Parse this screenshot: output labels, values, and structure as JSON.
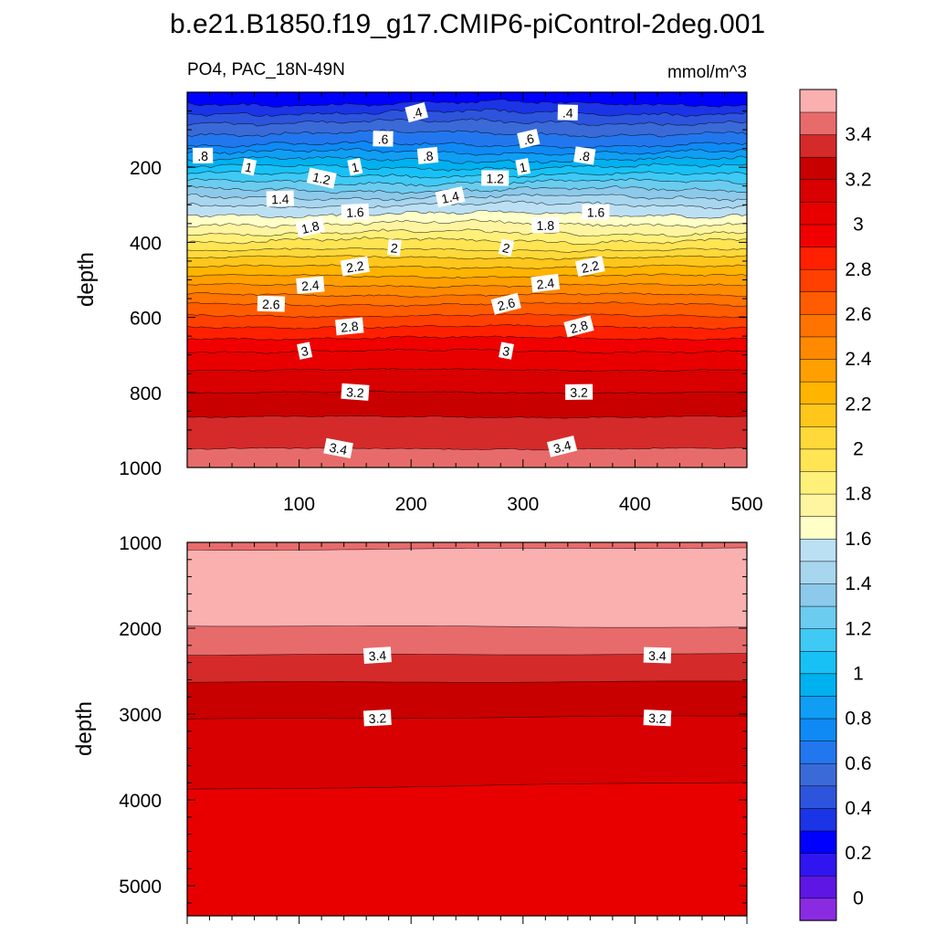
{
  "title": "b.e21.B1850.f19_g17.CMIP6-piControl-2deg.001",
  "chart_data": {
    "type": "contour",
    "variable": "PO4, PAC_18N-49N",
    "units": "mmol/m^3",
    "ylabel": "depth",
    "upper_panel": {
      "xlim": [
        0,
        500
      ],
      "ylim": [
        1000,
        0
      ],
      "x_ticks": [
        100,
        200,
        300,
        400,
        500
      ],
      "y_ticks": [
        200,
        400,
        600,
        800,
        1000
      ],
      "contour_depth_levels": [
        {
          "v": 0.3,
          "d": 30
        },
        {
          "v": 0.4,
          "d": 55
        },
        {
          "v": 0.5,
          "d": 80
        },
        {
          "v": 0.6,
          "d": 110
        },
        {
          "v": 0.7,
          "d": 140
        },
        {
          "v": 0.8,
          "d": 160
        },
        {
          "v": 0.9,
          "d": 180
        },
        {
          "v": 1.0,
          "d": 200
        },
        {
          "v": 1.1,
          "d": 220
        },
        {
          "v": 1.2,
          "d": 240
        },
        {
          "v": 1.3,
          "d": 260
        },
        {
          "v": 1.4,
          "d": 280
        },
        {
          "v": 1.5,
          "d": 300
        },
        {
          "v": 1.6,
          "d": 325
        },
        {
          "v": 1.7,
          "d": 350
        },
        {
          "v": 1.8,
          "d": 375
        },
        {
          "v": 1.9,
          "d": 395
        },
        {
          "v": 2.0,
          "d": 420
        },
        {
          "v": 2.1,
          "d": 440
        },
        {
          "v": 2.2,
          "d": 465
        },
        {
          "v": 2.3,
          "d": 490
        },
        {
          "v": 2.4,
          "d": 515
        },
        {
          "v": 2.5,
          "d": 540
        },
        {
          "v": 2.6,
          "d": 565
        },
        {
          "v": 2.7,
          "d": 595
        },
        {
          "v": 2.8,
          "d": 625
        },
        {
          "v": 2.9,
          "d": 655
        },
        {
          "v": 3.0,
          "d": 690
        },
        {
          "v": 3.1,
          "d": 740
        },
        {
          "v": 3.2,
          "d": 800
        },
        {
          "v": 3.3,
          "d": 865
        },
        {
          "v": 3.4,
          "d": 950
        }
      ],
      "contour_labels": [
        {
          "text": ".4",
          "x": 205,
          "d": 55
        },
        {
          "text": ".4",
          "x": 340,
          "d": 55
        },
        {
          "text": ".6",
          "x": 175,
          "d": 125
        },
        {
          "text": ".6",
          "x": 305,
          "d": 125
        },
        {
          "text": ".8",
          "x": 14,
          "d": 170
        },
        {
          "text": ".8",
          "x": 215,
          "d": 170
        },
        {
          "text": ".8",
          "x": 355,
          "d": 170
        },
        {
          "text": "1",
          "x": 55,
          "d": 200
        },
        {
          "text": "1",
          "x": 150,
          "d": 200
        },
        {
          "text": "1",
          "x": 300,
          "d": 200
        },
        {
          "text": "1.2",
          "x": 120,
          "d": 230
        },
        {
          "text": "1.2",
          "x": 275,
          "d": 230
        },
        {
          "text": "1.4",
          "x": 83,
          "d": 285
        },
        {
          "text": "1.4",
          "x": 235,
          "d": 280
        },
        {
          "text": "1.6",
          "x": 150,
          "d": 320
        },
        {
          "text": "1.6",
          "x": 365,
          "d": 320
        },
        {
          "text": "1.8",
          "x": 110,
          "d": 360
        },
        {
          "text": "1.8",
          "x": 320,
          "d": 355
        },
        {
          "text": "2",
          "x": 185,
          "d": 415
        },
        {
          "text": "2",
          "x": 285,
          "d": 415
        },
        {
          "text": "2.2",
          "x": 150,
          "d": 465
        },
        {
          "text": "2.2",
          "x": 360,
          "d": 465
        },
        {
          "text": "2.4",
          "x": 110,
          "d": 515
        },
        {
          "text": "2.4",
          "x": 320,
          "d": 510
        },
        {
          "text": "2.6",
          "x": 75,
          "d": 565
        },
        {
          "text": "2.6",
          "x": 285,
          "d": 565
        },
        {
          "text": "2.8",
          "x": 145,
          "d": 625
        },
        {
          "text": "2.8",
          "x": 350,
          "d": 625
        },
        {
          "text": "3",
          "x": 105,
          "d": 690
        },
        {
          "text": "3",
          "x": 285,
          "d": 690
        },
        {
          "text": "3.2",
          "x": 150,
          "d": 800
        },
        {
          "text": "3.2",
          "x": 350,
          "d": 800
        },
        {
          "text": "3.4",
          "x": 135,
          "d": 950
        },
        {
          "text": "3.4",
          "x": 335,
          "d": 945
        }
      ]
    },
    "lower_panel": {
      "xlim": [
        0,
        500
      ],
      "ylim": [
        5350,
        1000
      ],
      "y_ticks": [
        1000,
        2000,
        3000,
        4000,
        5000
      ],
      "boundaries": [
        {
          "v": 3.5,
          "d_left": 1090,
          "d_right": 1060
        },
        {
          "v": 3.5,
          "d_left": 1970,
          "d_right": 1990
        },
        {
          "v": 3.4,
          "d_left": 2310,
          "d_right": 2300
        },
        {
          "v": 3.3,
          "d_left": 2630,
          "d_right": 2620
        },
        {
          "v": 3.2,
          "d_left": 3060,
          "d_right": 3020
        },
        {
          "v": 3.1,
          "d_left": 3880,
          "d_right": 3790
        }
      ],
      "contour_labels": [
        {
          "text": "3.4",
          "x": 170,
          "d": 2320
        },
        {
          "text": "3.4",
          "x": 420,
          "d": 2320
        },
        {
          "text": "3.2",
          "x": 170,
          "d": 3050
        },
        {
          "text": "3.2",
          "x": 420,
          "d": 3050
        }
      ]
    },
    "colorbar": {
      "labels": [
        "0",
        "0.2",
        "0.4",
        "0.6",
        "0.8",
        "1",
        "1.2",
        "1.4",
        "1.6",
        "1.8",
        "2",
        "2.2",
        "2.4",
        "2.6",
        "2.8",
        "3",
        "3.2",
        "3.4"
      ],
      "colors": [
        "#8a2be2",
        "#5e16e4",
        "#3015f0",
        "#0000ff",
        "#1b34e6",
        "#2d54dc",
        "#3a6ad8",
        "#2277ee",
        "#0f8af4",
        "#0f9ef4",
        "#00b1ef",
        "#18c1f5",
        "#3fc9f5",
        "#6bccf0",
        "#8dc9ea",
        "#a8d6ef",
        "#bce0f3",
        "#ffffc8",
        "#fff5a0",
        "#fff07a",
        "#ffe553",
        "#ffd93a",
        "#ffc61c",
        "#ffb400",
        "#ff9f00",
        "#ff8a00",
        "#ff7300",
        "#ff5c00",
        "#ff4000",
        "#ff2000",
        "#f00000",
        "#e80000",
        "#d80000",
        "#c90000",
        "#d42a2a",
        "#e86b6b",
        "#fbb0b0"
      ]
    }
  }
}
